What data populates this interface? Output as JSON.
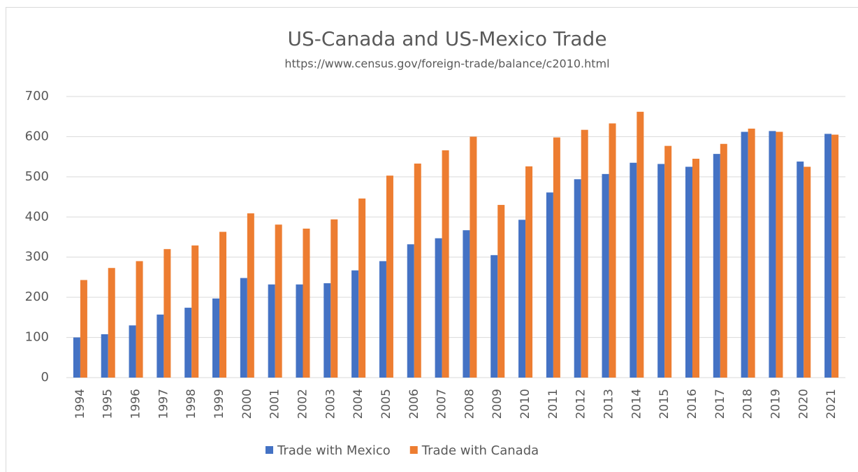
{
  "chart_data": {
    "type": "bar",
    "title": "US-Canada and US-Mexico Trade",
    "subtitle": "https://www.census.gov/foreign-trade/balance/c2010.html",
    "categories": [
      "1994",
      "1995",
      "1996",
      "1997",
      "1998",
      "1999",
      "2000",
      "2001",
      "2002",
      "2003",
      "2004",
      "2005",
      "2006",
      "2007",
      "2008",
      "2009",
      "2010",
      "2011",
      "2012",
      "2013",
      "2014",
      "2015",
      "2016",
      "2017",
      "2018",
      "2019",
      "2020",
      "2021"
    ],
    "series": [
      {
        "name": "Trade with Mexico",
        "color": "#4472c4",
        "values": [
          100,
          108,
          130,
          157,
          174,
          197,
          248,
          232,
          232,
          235,
          267,
          290,
          332,
          347,
          367,
          305,
          393,
          461,
          494,
          507,
          535,
          532,
          525,
          557,
          612,
          614,
          538,
          607
        ]
      },
      {
        "name": "Trade with Canada",
        "color": "#ed7d31",
        "values": [
          243,
          273,
          290,
          320,
          329,
          363,
          409,
          381,
          371,
          394,
          446,
          503,
          533,
          566,
          600,
          430,
          526,
          598,
          617,
          633,
          662,
          577,
          545,
          582,
          620,
          612,
          525,
          605
        ]
      }
    ],
    "ylim": [
      0,
      700
    ],
    "yticks": [
      0,
      100,
      200,
      300,
      400,
      500,
      600,
      700
    ],
    "grid": true,
    "legend": "bottom"
  }
}
